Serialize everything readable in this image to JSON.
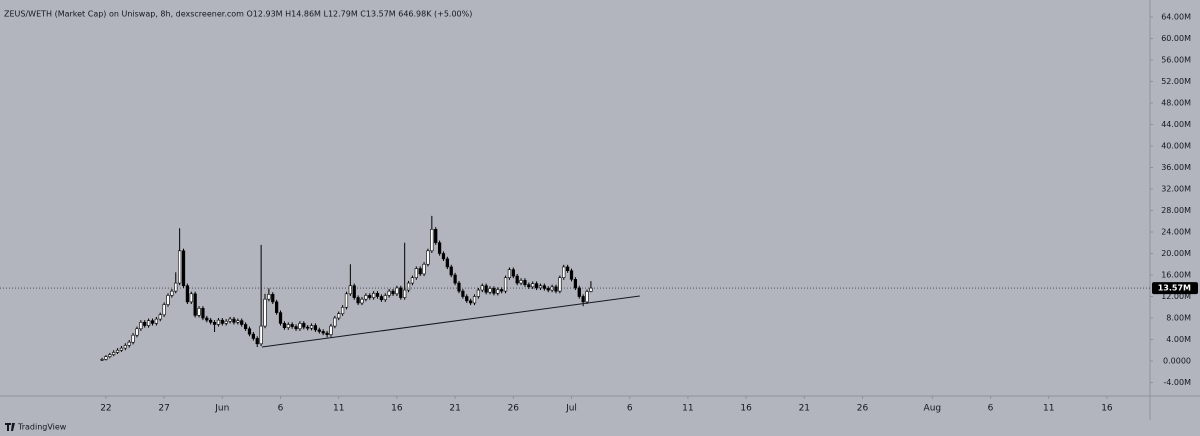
{
  "chart_data": {
    "type": "candlestick",
    "title": "ZEUS/WETH (Market Cap) on Uniswap, 8h, dexscreener.com  O12.93M  H14.86M  L12.79M  C13.57M  646.98K (+5.00%)",
    "background": "#b2b5be",
    "up_color": "#ffffff",
    "down_color": "#000000",
    "wick_color": "#000000",
    "ylim": [
      -6510000,
      67160000
    ],
    "xlim": [
      -26.3,
      270.1
    ],
    "yticks": [
      {
        "value": 64000000,
        "label": "64.00M"
      },
      {
        "value": 60000000,
        "label": "60.00M"
      },
      {
        "value": 56000000,
        "label": "56.00M"
      },
      {
        "value": 52000000,
        "label": "52.00M"
      },
      {
        "value": 48000000,
        "label": "48.00M"
      },
      {
        "value": 44000000,
        "label": "44.00M"
      },
      {
        "value": 40000000,
        "label": "40.00M"
      },
      {
        "value": 36000000,
        "label": "36.00M"
      },
      {
        "value": 32000000,
        "label": "32.00M"
      },
      {
        "value": 28000000,
        "label": "28.00M"
      },
      {
        "value": 24000000,
        "label": "24.00M"
      },
      {
        "value": 20000000,
        "label": "20.00M"
      },
      {
        "value": 16000000,
        "label": "16.00M"
      },
      {
        "value": 12000000,
        "label": "12.00M"
      },
      {
        "value": 8000000,
        "label": "8.00M"
      },
      {
        "value": 4000000,
        "label": "4.00M"
      },
      {
        "value": 0,
        "label": "0.0000"
      },
      {
        "value": -4000000,
        "label": "-4.00M"
      }
    ],
    "xticks": [
      {
        "value": 1,
        "label": "22"
      },
      {
        "value": 16,
        "label": "27"
      },
      {
        "value": 31,
        "label": "Jun"
      },
      {
        "value": 46,
        "label": "6"
      },
      {
        "value": 61,
        "label": "11"
      },
      {
        "value": 76,
        "label": "16"
      },
      {
        "value": 91,
        "label": "21"
      },
      {
        "value": 106,
        "label": "26"
      },
      {
        "value": 121,
        "label": "Jul"
      },
      {
        "value": 136,
        "label": "6"
      },
      {
        "value": 151,
        "label": "11"
      },
      {
        "value": 166,
        "label": "16"
      },
      {
        "value": 181,
        "label": "21"
      },
      {
        "value": 196,
        "label": "26"
      },
      {
        "value": 214,
        "label": "Aug"
      },
      {
        "value": 229,
        "label": "6"
      },
      {
        "value": 244,
        "label": "11"
      },
      {
        "value": 259,
        "label": "16"
      }
    ],
    "last_price": {
      "value": 13570000,
      "label": "13.57M"
    },
    "trendline": {
      "x": [
        41.2,
        138.6
      ],
      "y": [
        2600000,
        12100000
      ]
    },
    "candles": [
      [
        200000,
        600000,
        0,
        300000
      ],
      [
        300000,
        1100000,
        100000,
        800000
      ],
      [
        800000,
        1500000,
        500000,
        1200000
      ],
      [
        1200000,
        2000000,
        900000,
        1600000
      ],
      [
        1600000,
        2400000,
        1300000,
        2000000
      ],
      [
        2000000,
        2800000,
        1700000,
        2400000
      ],
      [
        2400000,
        3300000,
        2000000,
        2900000
      ],
      [
        2900000,
        3900000,
        2500000,
        3500000
      ],
      [
        3500000,
        5200000,
        3100000,
        4800000
      ],
      [
        4800000,
        6400000,
        4400000,
        6000000
      ],
      [
        6000000,
        7600000,
        5600000,
        7200000
      ],
      [
        7200000,
        7600000,
        6200000,
        6600000
      ],
      [
        6600000,
        7900000,
        6200000,
        7500000
      ],
      [
        7500000,
        7900000,
        6600000,
        7000000
      ],
      [
        7000000,
        8200000,
        6600000,
        7800000
      ],
      [
        7800000,
        9000000,
        7400000,
        8600000
      ],
      [
        8600000,
        10900000,
        8200000,
        10500000
      ],
      [
        10500000,
        12600000,
        10100000,
        12200000
      ],
      [
        12200000,
        13400000,
        11800000,
        13000000
      ],
      [
        13000000,
        16500000,
        12600000,
        14500000
      ],
      [
        14500000,
        24700000,
        14100000,
        20500000
      ],
      [
        20500000,
        20900000,
        13600000,
        14000000
      ],
      [
        14000000,
        14400000,
        10600000,
        11000000
      ],
      [
        11000000,
        12900000,
        10600000,
        12500000
      ],
      [
        12500000,
        12900000,
        8100000,
        8500000
      ],
      [
        8500000,
        10200000,
        8100000,
        9800000
      ],
      [
        9800000,
        10200000,
        7600000,
        8000000
      ],
      [
        8000000,
        8400000,
        7200000,
        7600000
      ],
      [
        7600000,
        8000000,
        6800000,
        7200000
      ],
      [
        7200000,
        7600000,
        5400000,
        6800000
      ],
      [
        6800000,
        8000000,
        6400000,
        7600000
      ],
      [
        7600000,
        8000000,
        6600000,
        7000000
      ],
      [
        7000000,
        7800000,
        6600000,
        7400000
      ],
      [
        7400000,
        8200000,
        7000000,
        7800000
      ],
      [
        7800000,
        8200000,
        6800000,
        7200000
      ],
      [
        7200000,
        7900000,
        6800000,
        7500000
      ],
      [
        7500000,
        7900000,
        6400000,
        6800000
      ],
      [
        6800000,
        7200000,
        5600000,
        6000000
      ],
      [
        6000000,
        6400000,
        4600000,
        5000000
      ],
      [
        5000000,
        5400000,
        3800000,
        4200000
      ],
      [
        4200000,
        4600000,
        2600000,
        3200000
      ],
      [
        3200000,
        21600000,
        2800000,
        6500000
      ],
      [
        6500000,
        12500000,
        6100000,
        11500000
      ],
      [
        11500000,
        13500000,
        11100000,
        12400000
      ],
      [
        12400000,
        12800000,
        10600000,
        11000000
      ],
      [
        11000000,
        11400000,
        8600000,
        9000000
      ],
      [
        9000000,
        9400000,
        6600000,
        7000000
      ],
      [
        7000000,
        7400000,
        5800000,
        6200000
      ],
      [
        6200000,
        7200000,
        5800000,
        6800000
      ],
      [
        6800000,
        7200000,
        6000000,
        6400000
      ],
      [
        6400000,
        6800000,
        5600000,
        6000000
      ],
      [
        6000000,
        7400000,
        5600000,
        7000000
      ],
      [
        7000000,
        7400000,
        5900000,
        6300000
      ],
      [
        6300000,
        6700000,
        5700000,
        6100000
      ],
      [
        6100000,
        7000000,
        5700000,
        6600000
      ],
      [
        6600000,
        7000000,
        5400000,
        5800000
      ],
      [
        5800000,
        6200000,
        5100000,
        5500000
      ],
      [
        5500000,
        5900000,
        4800000,
        5200000
      ],
      [
        5200000,
        5600000,
        4400000,
        4900000
      ],
      [
        4900000,
        6900000,
        4500000,
        6500000
      ],
      [
        6500000,
        8400000,
        6100000,
        8000000
      ],
      [
        8000000,
        9200000,
        7600000,
        8800000
      ],
      [
        8800000,
        10400000,
        8400000,
        10000000
      ],
      [
        10000000,
        12900000,
        9600000,
        12500000
      ],
      [
        12500000,
        18000000,
        12100000,
        14000000
      ],
      [
        14000000,
        14400000,
        11400000,
        11800000
      ],
      [
        11800000,
        12200000,
        10400000,
        10800000
      ],
      [
        10800000,
        11900000,
        10400000,
        11500000
      ],
      [
        11500000,
        12600000,
        11100000,
        12200000
      ],
      [
        12200000,
        12600000,
        11400000,
        11800000
      ],
      [
        11800000,
        13000000,
        11400000,
        12600000
      ],
      [
        12600000,
        13000000,
        11600000,
        12000000
      ],
      [
        12000000,
        12400000,
        11000000,
        11400000
      ],
      [
        11400000,
        12600000,
        11000000,
        12200000
      ],
      [
        12200000,
        13400000,
        11800000,
        13000000
      ],
      [
        13000000,
        13400000,
        12100000,
        12500000
      ],
      [
        12500000,
        14000000,
        12100000,
        13600000
      ],
      [
        13600000,
        14000000,
        11400000,
        11800000
      ],
      [
        11800000,
        22000000,
        11400000,
        13200000
      ],
      [
        13200000,
        14900000,
        12800000,
        14500000
      ],
      [
        14500000,
        15900000,
        14100000,
        15500000
      ],
      [
        15500000,
        17600000,
        15100000,
        17200000
      ],
      [
        17200000,
        17600000,
        15800000,
        16200000
      ],
      [
        16200000,
        18400000,
        15800000,
        18000000
      ],
      [
        18000000,
        20900000,
        17600000,
        20500000
      ],
      [
        20500000,
        27000000,
        20100000,
        24500000
      ],
      [
        24500000,
        24900000,
        21600000,
        22000000
      ],
      [
        22000000,
        22400000,
        19600000,
        20000000
      ],
      [
        20000000,
        20400000,
        18600000,
        19000000
      ],
      [
        19000000,
        19400000,
        17100000,
        17500000
      ],
      [
        17500000,
        17900000,
        15600000,
        16000000
      ],
      [
        16000000,
        16400000,
        14100000,
        14500000
      ],
      [
        14500000,
        14900000,
        12600000,
        13000000
      ],
      [
        13000000,
        13400000,
        11600000,
        12000000
      ],
      [
        12000000,
        12400000,
        10800000,
        11200000
      ],
      [
        11200000,
        11600000,
        10400000,
        10800000
      ],
      [
        10800000,
        12400000,
        10400000,
        12000000
      ],
      [
        12000000,
        13600000,
        11600000,
        13200000
      ],
      [
        13200000,
        14400000,
        12800000,
        14000000
      ],
      [
        14000000,
        14400000,
        12400000,
        12800000
      ],
      [
        12800000,
        13900000,
        12400000,
        13500000
      ],
      [
        13500000,
        13900000,
        12200000,
        12600000
      ],
      [
        12600000,
        13700000,
        12200000,
        13300000
      ],
      [
        13300000,
        13700000,
        12600000,
        13000000
      ],
      [
        13000000,
        15900000,
        12600000,
        15500000
      ],
      [
        15500000,
        17400000,
        15100000,
        17000000
      ],
      [
        17000000,
        17400000,
        15400000,
        15800000
      ],
      [
        15800000,
        16200000,
        14100000,
        14500000
      ],
      [
        14500000,
        15400000,
        14100000,
        15000000
      ],
      [
        15000000,
        15400000,
        13800000,
        14200000
      ],
      [
        14200000,
        14600000,
        13400000,
        13800000
      ],
      [
        13800000,
        14800000,
        13400000,
        14400000
      ],
      [
        14400000,
        14800000,
        13200000,
        13600000
      ],
      [
        13600000,
        14400000,
        13200000,
        14000000
      ],
      [
        14000000,
        14400000,
        13100000,
        13500000
      ],
      [
        13500000,
        13900000,
        12800000,
        13200000
      ],
      [
        13200000,
        14200000,
        12800000,
        13800000
      ],
      [
        13800000,
        14200000,
        12600000,
        13000000
      ],
      [
        13000000,
        15900000,
        12600000,
        15500000
      ],
      [
        15500000,
        17900000,
        15100000,
        17500000
      ],
      [
        17500000,
        17900000,
        16400000,
        16800000
      ],
      [
        16800000,
        17200000,
        14800000,
        15200000
      ],
      [
        15200000,
        15600000,
        13200000,
        13600000
      ],
      [
        13600000,
        14000000,
        11600000,
        12000000
      ],
      [
        12000000,
        12400000,
        10200000,
        11000000
      ],
      [
        11000000,
        13300000,
        10600000,
        12930000
      ],
      [
        12930000,
        14860000,
        12790000,
        13570000
      ]
    ]
  },
  "brand": "TradingView"
}
